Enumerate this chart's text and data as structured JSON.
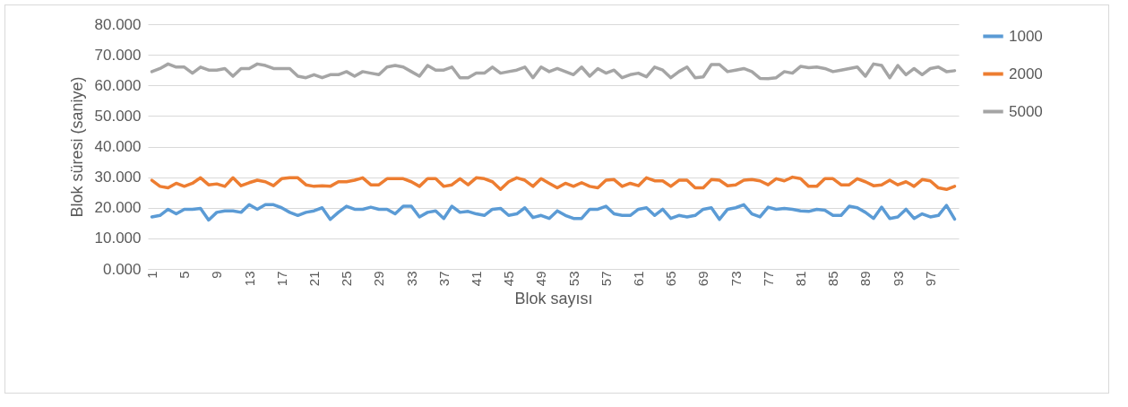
{
  "chart_data": {
    "type": "line",
    "xlabel": "Blok sayısı",
    "ylabel": "Blok süresi (saniye)",
    "categories": [
      "1",
      null,
      null,
      null,
      "5",
      null,
      null,
      null,
      "9",
      null,
      null,
      null,
      "13",
      null,
      null,
      null,
      "17",
      null,
      null,
      null,
      "21",
      null,
      null,
      null,
      "25",
      null,
      null,
      null,
      "29",
      null,
      null,
      null,
      "33",
      null,
      null,
      null,
      "37",
      null,
      null,
      null,
      "41",
      null,
      null,
      null,
      "45",
      null,
      null,
      null,
      "49",
      null,
      null,
      null,
      "53",
      null,
      null,
      null,
      "57",
      null,
      null,
      null,
      "61",
      null,
      null,
      null,
      "65",
      null,
      null,
      null,
      "69",
      null,
      null,
      null,
      "73",
      null,
      null,
      null,
      "77",
      null,
      null,
      null,
      "81",
      null,
      null,
      null,
      "85",
      null,
      null,
      null,
      "89",
      null,
      null,
      null,
      "93",
      null,
      null,
      null,
      "97",
      null,
      null,
      null
    ],
    "series": [
      {
        "name": "1000",
        "color": "#5b9bd5",
        "values": [
          17,
          17.5,
          19.5,
          18,
          19.5,
          19.5,
          19.8,
          16,
          18.5,
          19,
          19,
          18.5,
          21,
          19.5,
          21,
          21,
          20,
          18.5,
          17.5,
          18.5,
          19,
          20,
          16.2,
          18.5,
          20.5,
          19.5,
          19.5,
          20.2,
          19.5,
          19.5,
          18,
          20.5,
          20.5,
          17,
          18.5,
          19,
          16.5,
          20.5,
          18.5,
          18.8,
          18,
          17.5,
          19.5,
          19.8,
          17.5,
          18,
          20,
          16.8,
          17.5,
          16.5,
          19,
          17.5,
          16.5,
          16.5,
          19.5,
          19.5,
          20.5,
          18,
          17.5,
          17.5,
          19.5,
          20,
          17.5,
          19.5,
          16.5,
          17.5,
          17,
          17.5,
          19.5,
          20,
          16.2,
          19.5,
          20,
          21,
          18,
          17,
          20.2,
          19.5,
          19.8,
          19.5,
          19,
          18.8,
          19.5,
          19.2,
          17.5,
          17.5,
          20.5,
          20,
          18.5,
          16.5,
          20.2,
          16.5,
          17,
          19.5,
          16.5,
          18,
          17,
          17.5,
          20.8,
          16.3
        ]
      },
      {
        "name": "2000",
        "color": "#ed7d31",
        "values": [
          29,
          27,
          26.5,
          28,
          27,
          28,
          29.8,
          27.5,
          27.8,
          27,
          29.8,
          27.2,
          28.2,
          29,
          28.5,
          27.2,
          29.5,
          29.8,
          29.8,
          27.5,
          27,
          27.2,
          27,
          28.5,
          28.5,
          29,
          29.8,
          27.5,
          27.5,
          29.5,
          29.5,
          29.5,
          28.5,
          27,
          29.5,
          29.5,
          27,
          27.5,
          29.5,
          27.5,
          29.8,
          29.5,
          28.5,
          26,
          28.5,
          29.8,
          29,
          27,
          29.5,
          28,
          26.5,
          28,
          27,
          28.2,
          27,
          26.5,
          29,
          29.2,
          27,
          28,
          27.2,
          29.8,
          28.8,
          28.8,
          27,
          29,
          29,
          26.5,
          26.5,
          29.2,
          29,
          27.2,
          27.5,
          29,
          29.2,
          28.8,
          27.5,
          29.5,
          28.8,
          30,
          29.5,
          27,
          27,
          29.5,
          29.5,
          27.5,
          27.5,
          29.5,
          28.5,
          27.2,
          27.5,
          29,
          27.5,
          28.5,
          27,
          29.2,
          28.8,
          26.5,
          26,
          27
        ]
      },
      {
        "name": "5000",
        "color": "#a5a5a5",
        "values": [
          64.5,
          65.5,
          67,
          66,
          66,
          64,
          66,
          65,
          65,
          65.5,
          63,
          65.5,
          65.5,
          67,
          66.5,
          65.5,
          65.5,
          65.5,
          63,
          62.5,
          63.5,
          62.5,
          63.5,
          63.5,
          64.5,
          63,
          64.5,
          64,
          63.5,
          66,
          66.5,
          66,
          64.5,
          63,
          66.5,
          65,
          65,
          66,
          62.5,
          62.5,
          64,
          64,
          66,
          64,
          64.5,
          65,
          66,
          62.5,
          66,
          64.5,
          65.5,
          64.5,
          63.5,
          66,
          63,
          65.5,
          64,
          65,
          62.5,
          63.5,
          64,
          62.8,
          66,
          65,
          62.5,
          64.5,
          66,
          62.5,
          62.8,
          66.8,
          66.8,
          64.5,
          65,
          65.5,
          64.5,
          62.3,
          62.2,
          62.5,
          64.5,
          64,
          66.2,
          65.8,
          66,
          65.5,
          64.5,
          65,
          65.5,
          66,
          63,
          67,
          66.5,
          62.5,
          66.5,
          63.5,
          65.5,
          63.5,
          65.5,
          66,
          64.5,
          64.8
        ]
      }
    ],
    "ylim": [
      0,
      80
    ],
    "yticks": [
      {
        "value": 0,
        "label": "0.000"
      },
      {
        "value": 10,
        "label": "10.000"
      },
      {
        "value": 20,
        "label": "20.000"
      },
      {
        "value": 30,
        "label": "30.000"
      },
      {
        "value": 40,
        "label": "40.000"
      },
      {
        "value": 50,
        "label": "50.000"
      },
      {
        "value": 60,
        "label": "60.000"
      },
      {
        "value": 70,
        "label": "70.000"
      },
      {
        "value": 80,
        "label": "80.000"
      }
    ],
    "grid": "y",
    "legend": "right"
  }
}
